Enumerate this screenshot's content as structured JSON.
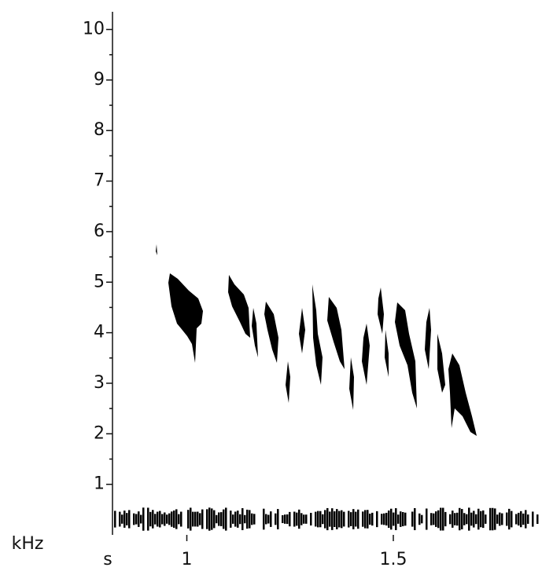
{
  "chart_data": {
    "type": "spectrogram",
    "x_label": "s",
    "y_label": "kHz",
    "xlim": [
      0.82,
      1.86
    ],
    "xticks": [
      1,
      1.5
    ],
    "ylim": [
      0,
      10.35
    ],
    "yticks": [
      1,
      2,
      3,
      4,
      5,
      6,
      7,
      8,
      9,
      10
    ],
    "color": "#000000"
  }
}
